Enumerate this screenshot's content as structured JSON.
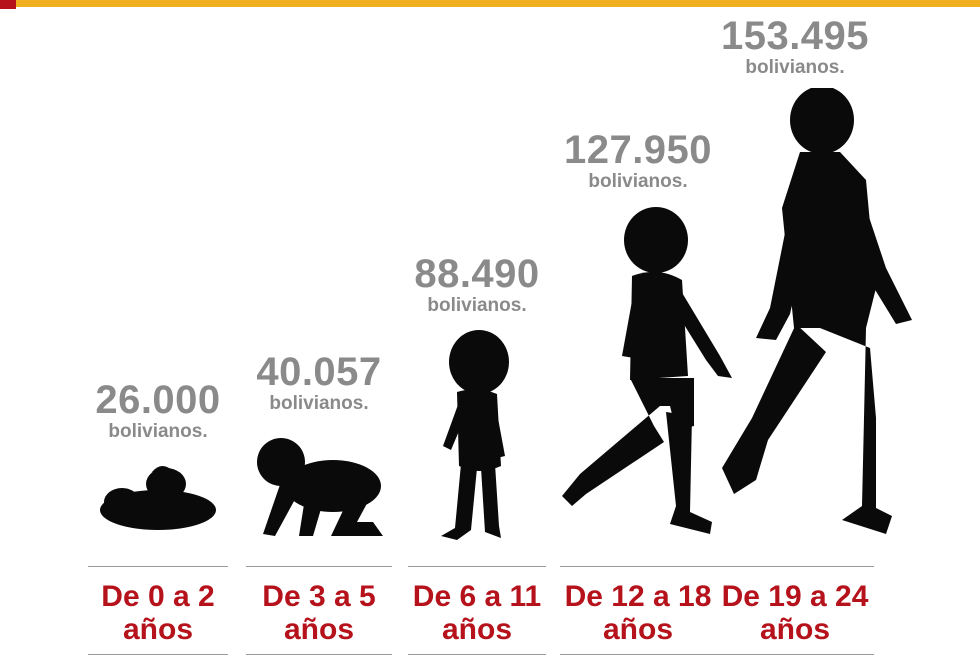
{
  "chart_data": {
    "type": "bar",
    "categories": [
      "De 0 a 2 años",
      "De 3 a 5 años",
      "De 6 a 11 años",
      "De 12 a 18 años",
      "De 19 a 24 años"
    ],
    "category_lines": [
      [
        "De 0 a 2",
        "años"
      ],
      [
        "De 3 a 5",
        "años"
      ],
      [
        "De 6 a 11",
        "años"
      ],
      [
        "De 12 a 18",
        "años"
      ],
      [
        "De 19 a 24",
        "años"
      ]
    ],
    "values": [
      26000,
      40057,
      88490,
      127950,
      153495
    ],
    "value_labels": [
      "26.000",
      "40.057",
      "88.490",
      "127.950",
      "153.495"
    ],
    "unit_label": "bolivianos.",
    "marks": [
      "baby-silhouette",
      "crawling-child-silhouette",
      "toddler-silhouette",
      "walking-boy-silhouette",
      "walking-man-silhouette"
    ],
    "colors": {
      "value": "#8a8a8a",
      "category": "#b5121b",
      "figure": "#0a0a0a",
      "topbar": "#f0b020",
      "topbar_accent": "#b5121b"
    }
  }
}
